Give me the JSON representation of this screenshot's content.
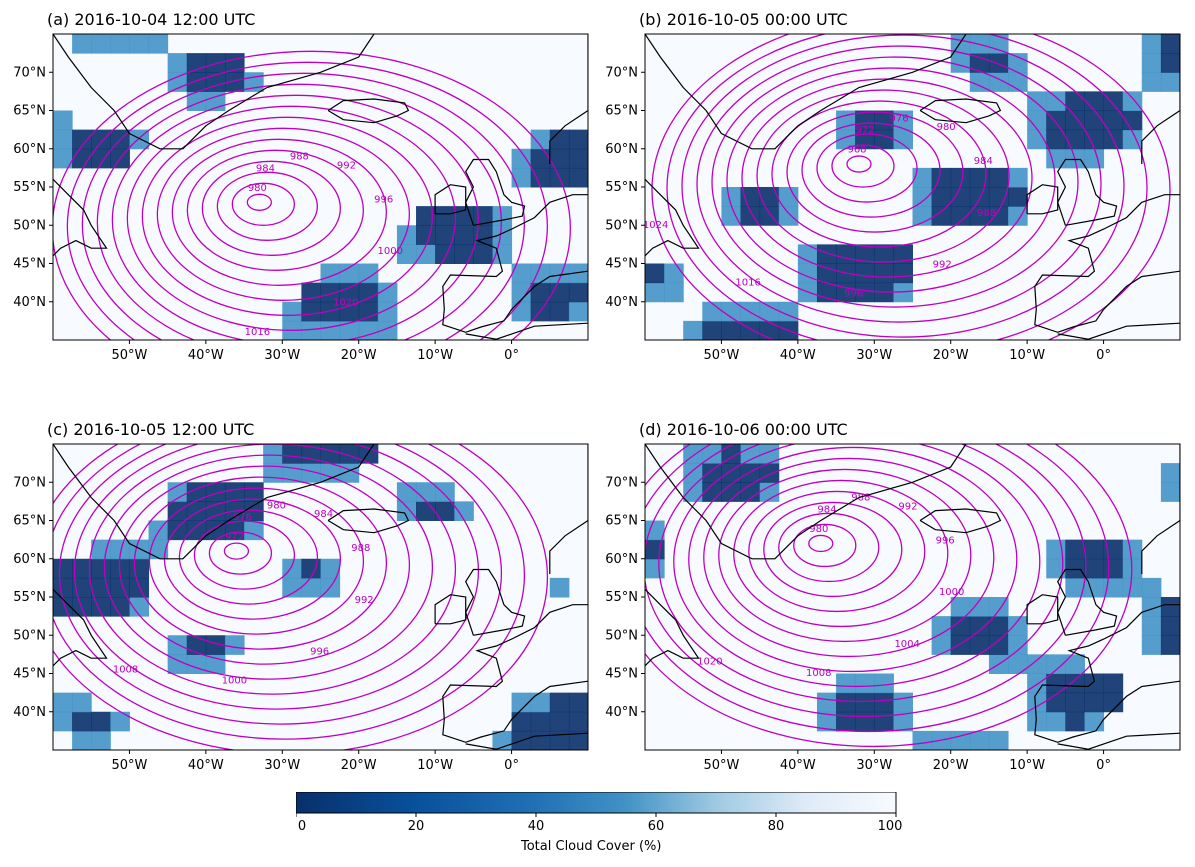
{
  "panels": [
    {
      "id": "a",
      "title": "(a) 2016-10-04 12:00 UTC",
      "low_center": {
        "lon": -33,
        "lat": 53
      },
      "low_value": 980,
      "labels": [
        "980",
        "984",
        "988",
        "992",
        "996",
        "1000",
        "1020",
        "1016"
      ]
    },
    {
      "id": "b",
      "title": "(b) 2016-10-05 00:00 UTC",
      "low_center": {
        "lon": -32,
        "lat": 58
      },
      "low_value": 968,
      "labels": [
        "968",
        "972",
        "976",
        "980",
        "984",
        "988",
        "992",
        "996",
        "1016",
        "1024"
      ]
    },
    {
      "id": "c",
      "title": "(c) 2016-10-05 12:00 UTC",
      "low_center": {
        "lon": -36,
        "lat": 61
      },
      "low_value": 972,
      "labels": [
        "972",
        "976",
        "980",
        "984",
        "988",
        "992",
        "996",
        "1000",
        "1008",
        "1020",
        "1024"
      ]
    },
    {
      "id": "d",
      "title": "(d) 2016-10-06 00:00 UTC",
      "low_center": {
        "lon": -37,
        "lat": 62
      },
      "low_value": 980,
      "labels": [
        "980",
        "984",
        "988",
        "992",
        "996",
        "1000",
        "1004",
        "1008",
        "1020",
        "1024"
      ]
    }
  ],
  "map_extent": {
    "lon": [
      -60,
      10
    ],
    "lat": [
      35,
      75
    ]
  },
  "lon_ticks": [
    "50°W",
    "40°W",
    "30°W",
    "20°W",
    "10°W",
    "0°"
  ],
  "lon_tick_values": [
    -50,
    -40,
    -30,
    -20,
    -10,
    0
  ],
  "lat_ticks": [
    "70°N",
    "65°N",
    "60°N",
    "55°N",
    "50°N",
    "45°N",
    "40°N"
  ],
  "lat_tick_values": [
    70,
    65,
    60,
    55,
    50,
    45,
    40
  ],
  "colorbar": {
    "label": "Total Cloud Cover (%)",
    "ticks": [
      "0",
      "20",
      "40",
      "60",
      "80",
      "100"
    ],
    "tick_values": [
      0,
      20,
      40,
      60,
      80,
      100
    ],
    "range": [
      0,
      100
    ],
    "colormap": "Blues_r"
  },
  "colors": {
    "contour": "#bf00bf",
    "coast": "#000000",
    "cloud_low": "#08306b",
    "cloud_mid": "#4292c6",
    "cloud_high": "#f7fbff"
  }
}
